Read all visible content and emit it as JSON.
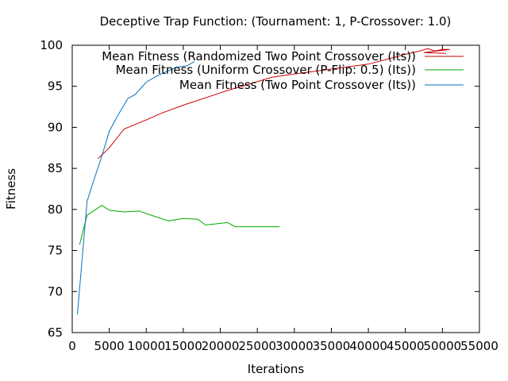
{
  "chart_data": {
    "type": "line",
    "title": "Deceptive Trap Function:  (Tournament: 1, P-Crossover: 1.0)",
    "xlabel": "Iterations",
    "ylabel": "Fitness",
    "xlim": [
      0,
      55000
    ],
    "ylim": [
      65,
      100
    ],
    "xticks": [
      0,
      5000,
      10000,
      15000,
      20000,
      25000,
      30000,
      35000,
      40000,
      45000,
      50000,
      55000
    ],
    "yticks": [
      65,
      70,
      75,
      80,
      85,
      90,
      95,
      100
    ],
    "legend_position": "top-right",
    "grid": false,
    "series": [
      {
        "name": "Mean Fitness (Randomized Two Point Crossover (Its))",
        "color": "#cc0000",
        "x": [
          3500,
          5000,
          7000,
          10000,
          12000,
          15000,
          18000,
          21000,
          24000,
          27000,
          30000,
          35000,
          40000,
          43000,
          45000,
          47000,
          48000,
          49000,
          50000,
          51000,
          47500,
          50500
        ],
        "y": [
          86.2,
          87.5,
          89.8,
          90.9,
          91.7,
          92.7,
          93.6,
          94.5,
          95.3,
          96.1,
          96.5,
          97.1,
          97.7,
          98.4,
          98.9,
          99.3,
          99.6,
          99.3,
          99.5,
          99.5,
          99.1,
          99.0
        ]
      },
      {
        "name": "Mean Fitness (Uniform Crossover (P-Flip: 0.5) (Its))",
        "color": "#00aa00",
        "x": [
          1000,
          2000,
          4000,
          5000,
          7000,
          9000,
          11000,
          13000,
          15000,
          17000,
          18000,
          20000,
          21000,
          22000,
          25000,
          28000
        ],
        "y": [
          75.7,
          79.3,
          80.5,
          79.9,
          79.7,
          79.8,
          79.2,
          78.6,
          78.9,
          78.8,
          78.1,
          78.3,
          78.4,
          77.9,
          77.9,
          77.9
        ]
      },
      {
        "name": "Mean Fitness (Two Point Crossover (Its))",
        "color": "#0072bd",
        "x": [
          700,
          2000,
          3000,
          4000,
          5000,
          6000,
          7500,
          8500,
          10000,
          11500,
          13000,
          14000,
          15500,
          16500
        ],
        "y": [
          67.2,
          81.0,
          83.8,
          86.5,
          89.5,
          91.2,
          93.5,
          94.0,
          95.5,
          96.3,
          96.9,
          97.3,
          97.5,
          98.0
        ]
      }
    ]
  }
}
